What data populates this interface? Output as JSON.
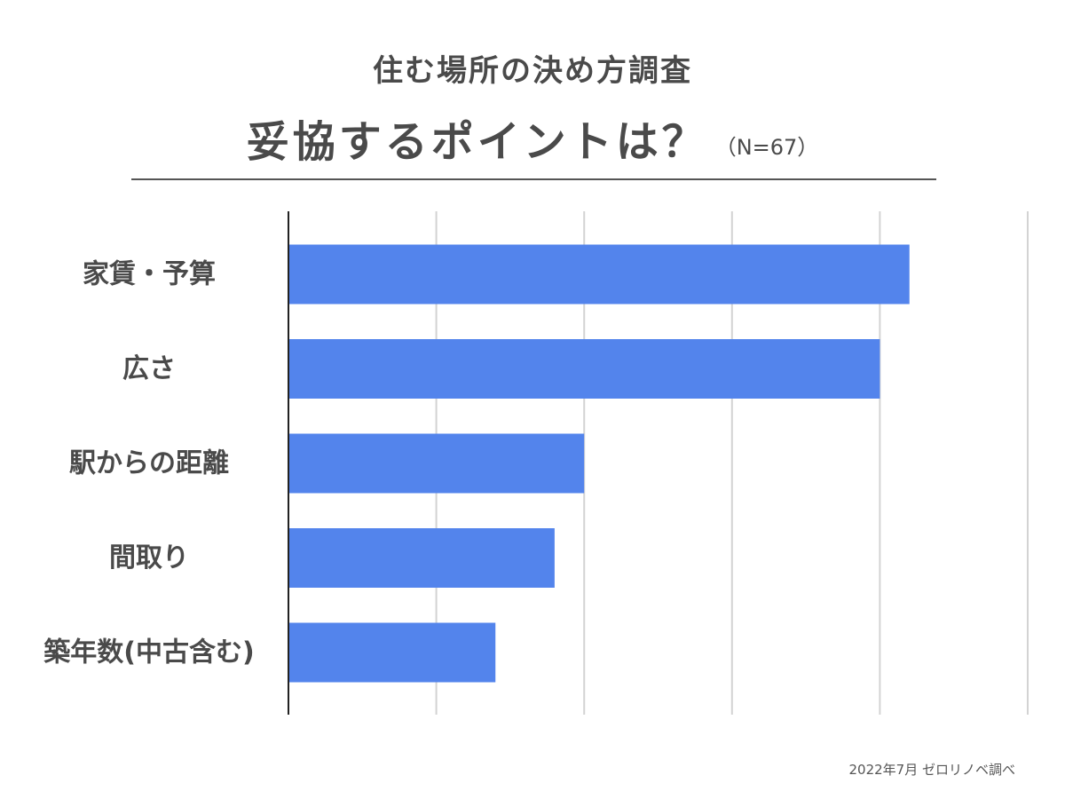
{
  "chart_data": {
    "type": "bar",
    "orientation": "horizontal",
    "title": "住む場所の決め方調査",
    "subtitle": "妥協するポイントは？",
    "sample_note": "（N=67）",
    "categories": [
      "家賃・予算",
      "広さ",
      "駅からの距離",
      "間取り",
      "築年数(中古含む)"
    ],
    "values": [
      42,
      40,
      20,
      18,
      14
    ],
    "xlim": [
      0,
      50
    ],
    "x_gridlines": [
      0,
      10,
      20,
      30,
      40,
      50
    ],
    "grid": true,
    "legend": "none",
    "bar_color": "#5384ec",
    "grid_color": "#d3d3d3",
    "axis_color": "#222222",
    "label_color": "#4a4a4a"
  },
  "footer": {
    "source": "2022年7月 ゼロリノベ調べ"
  }
}
